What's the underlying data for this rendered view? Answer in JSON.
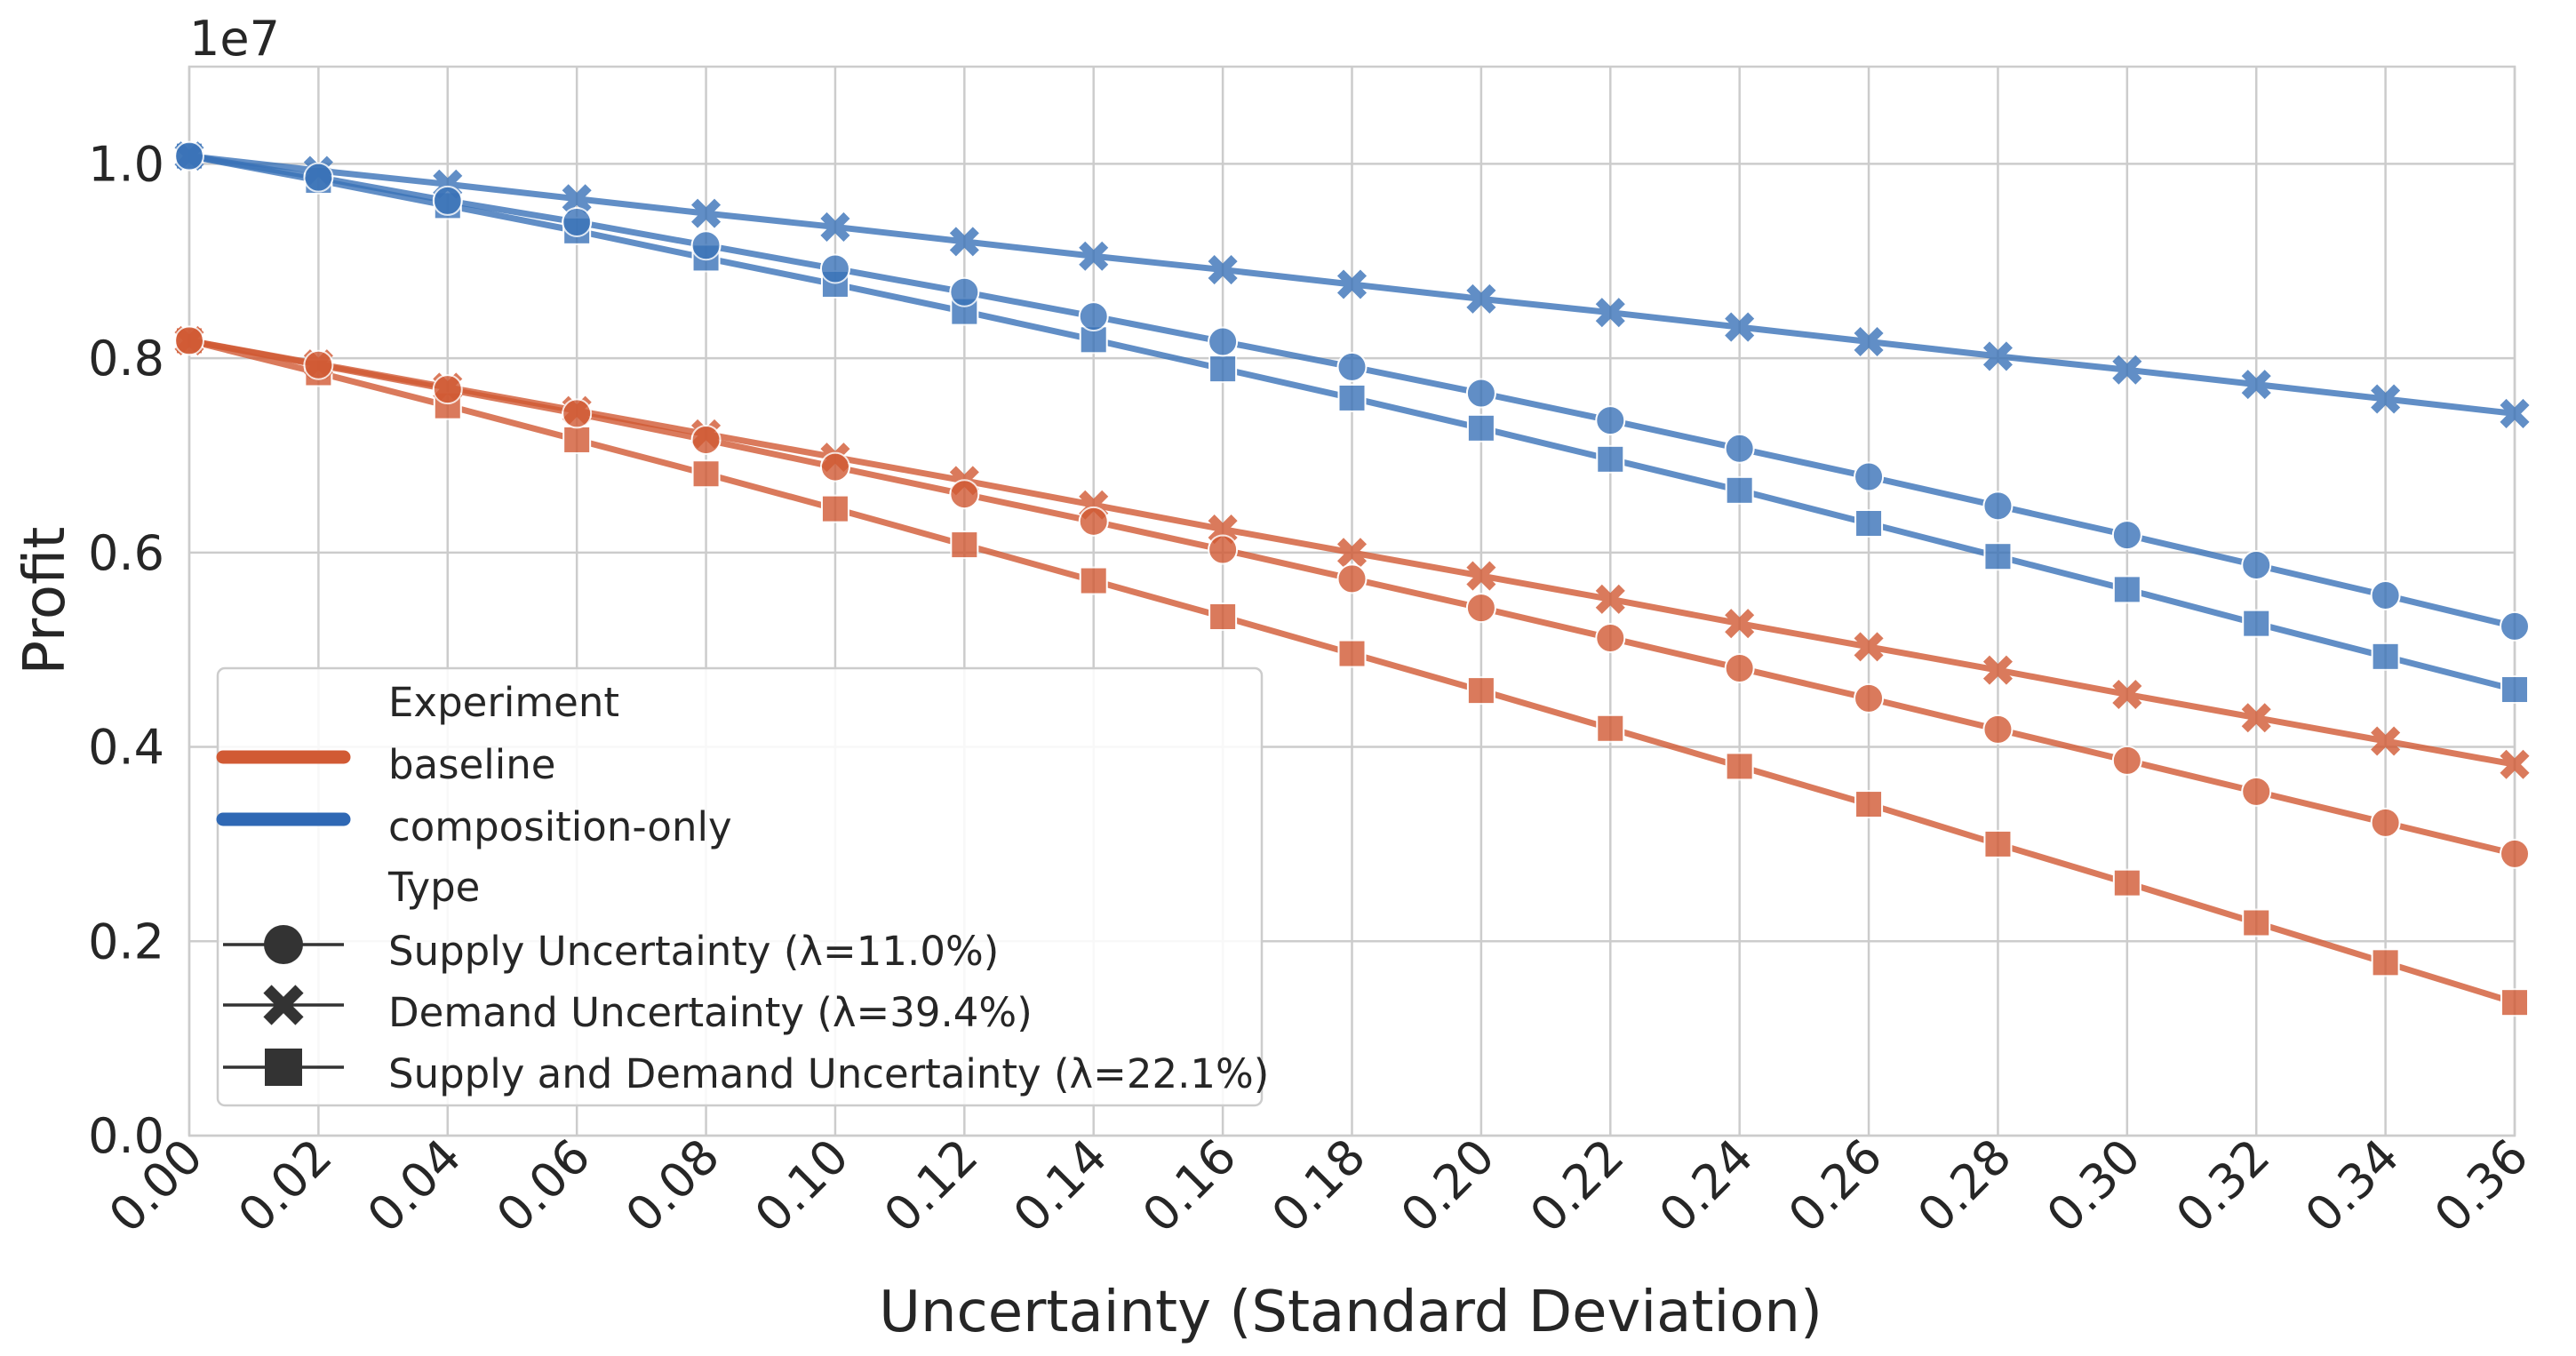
{
  "chart_data": {
    "type": "line",
    "title": "",
    "xlabel": "Uncertainty (Standard Deviation)",
    "ylabel": "Profit",
    "y_offset_label": "1e7",
    "x": [
      0.0,
      0.02,
      0.04,
      0.06,
      0.08,
      0.1,
      0.12,
      0.14,
      0.16,
      0.18,
      0.2,
      0.22,
      0.24,
      0.26,
      0.28,
      0.3,
      0.32,
      0.34,
      0.36
    ],
    "x_tick_labels": [
      "0.00",
      "0.02",
      "0.04",
      "0.06",
      "0.08",
      "0.10",
      "0.12",
      "0.14",
      "0.16",
      "0.18",
      "0.20",
      "0.22",
      "0.24",
      "0.26",
      "0.28",
      "0.30",
      "0.32",
      "0.34",
      "0.36"
    ],
    "xlim": [
      0.0,
      0.36
    ],
    "ylim": [
      0.0,
      1.1
    ],
    "y_ticks": [
      0.0,
      0.2,
      0.4,
      0.6,
      0.8,
      1.0
    ],
    "y_tick_labels": [
      "0.0",
      "0.2",
      "0.4",
      "0.6",
      "0.8",
      "1.0"
    ],
    "grid": true,
    "legend_position": "lower-left",
    "colors": {
      "baseline": "#d15a34",
      "composition-only": "#3a73b8",
      "grid": "#cccccc",
      "type_marker": "#333333"
    },
    "legend": {
      "experiment_title": "Experiment",
      "experiments": [
        "baseline",
        "composition-only"
      ],
      "type_title": "Type",
      "types": [
        {
          "marker": "circle",
          "label": "Supply Uncertainty (λ=11.0%)"
        },
        {
          "marker": "x",
          "label": "Demand Uncertainty (λ=39.4%)"
        },
        {
          "marker": "square",
          "label": "Supply and Demand Uncertainty (λ=22.1%)"
        }
      ]
    },
    "series": [
      {
        "experiment": "baseline",
        "type": "Supply Uncertainty (λ=11.0%)",
        "marker": "circle",
        "values": [
          0.818,
          0.793,
          0.768,
          0.743,
          0.716,
          0.688,
          0.66,
          0.632,
          0.603,
          0.573,
          0.543,
          0.512,
          0.481,
          0.45,
          0.418,
          0.386,
          0.354,
          0.322,
          0.29
        ]
      },
      {
        "experiment": "baseline",
        "type": "Demand Uncertainty (λ=39.4%)",
        "marker": "x",
        "values": [
          0.818,
          0.794,
          0.77,
          0.746,
          0.722,
          0.698,
          0.674,
          0.649,
          0.624,
          0.6,
          0.576,
          0.552,
          0.527,
          0.503,
          0.479,
          0.454,
          0.43,
          0.406,
          0.382
        ]
      },
      {
        "experiment": "baseline",
        "type": "Supply and Demand Uncertainty (λ=22.1%)",
        "marker": "square",
        "values": [
          0.818,
          0.785,
          0.751,
          0.716,
          0.681,
          0.645,
          0.608,
          0.571,
          0.534,
          0.496,
          0.458,
          0.419,
          0.38,
          0.341,
          0.3,
          0.26,
          0.219,
          0.178,
          0.137
        ]
      },
      {
        "experiment": "composition-only",
        "type": "Supply Uncertainty (λ=11.0%)",
        "marker": "circle",
        "values": [
          1.008,
          0.986,
          0.962,
          0.94,
          0.916,
          0.892,
          0.868,
          0.843,
          0.817,
          0.791,
          0.764,
          0.736,
          0.707,
          0.678,
          0.648,
          0.618,
          0.587,
          0.556,
          0.524
        ]
      },
      {
        "experiment": "composition-only",
        "type": "Demand Uncertainty (λ=39.4%)",
        "marker": "x",
        "values": [
          1.008,
          0.993,
          0.979,
          0.964,
          0.949,
          0.935,
          0.92,
          0.905,
          0.891,
          0.876,
          0.861,
          0.847,
          0.832,
          0.817,
          0.802,
          0.788,
          0.773,
          0.758,
          0.743
        ]
      },
      {
        "experiment": "composition-only",
        "type": "Supply and Demand Uncertainty (λ=22.1%)",
        "marker": "square",
        "values": [
          1.008,
          0.983,
          0.957,
          0.931,
          0.903,
          0.876,
          0.848,
          0.819,
          0.789,
          0.759,
          0.728,
          0.696,
          0.664,
          0.63,
          0.596,
          0.562,
          0.527,
          0.493,
          0.459
        ]
      }
    ]
  }
}
